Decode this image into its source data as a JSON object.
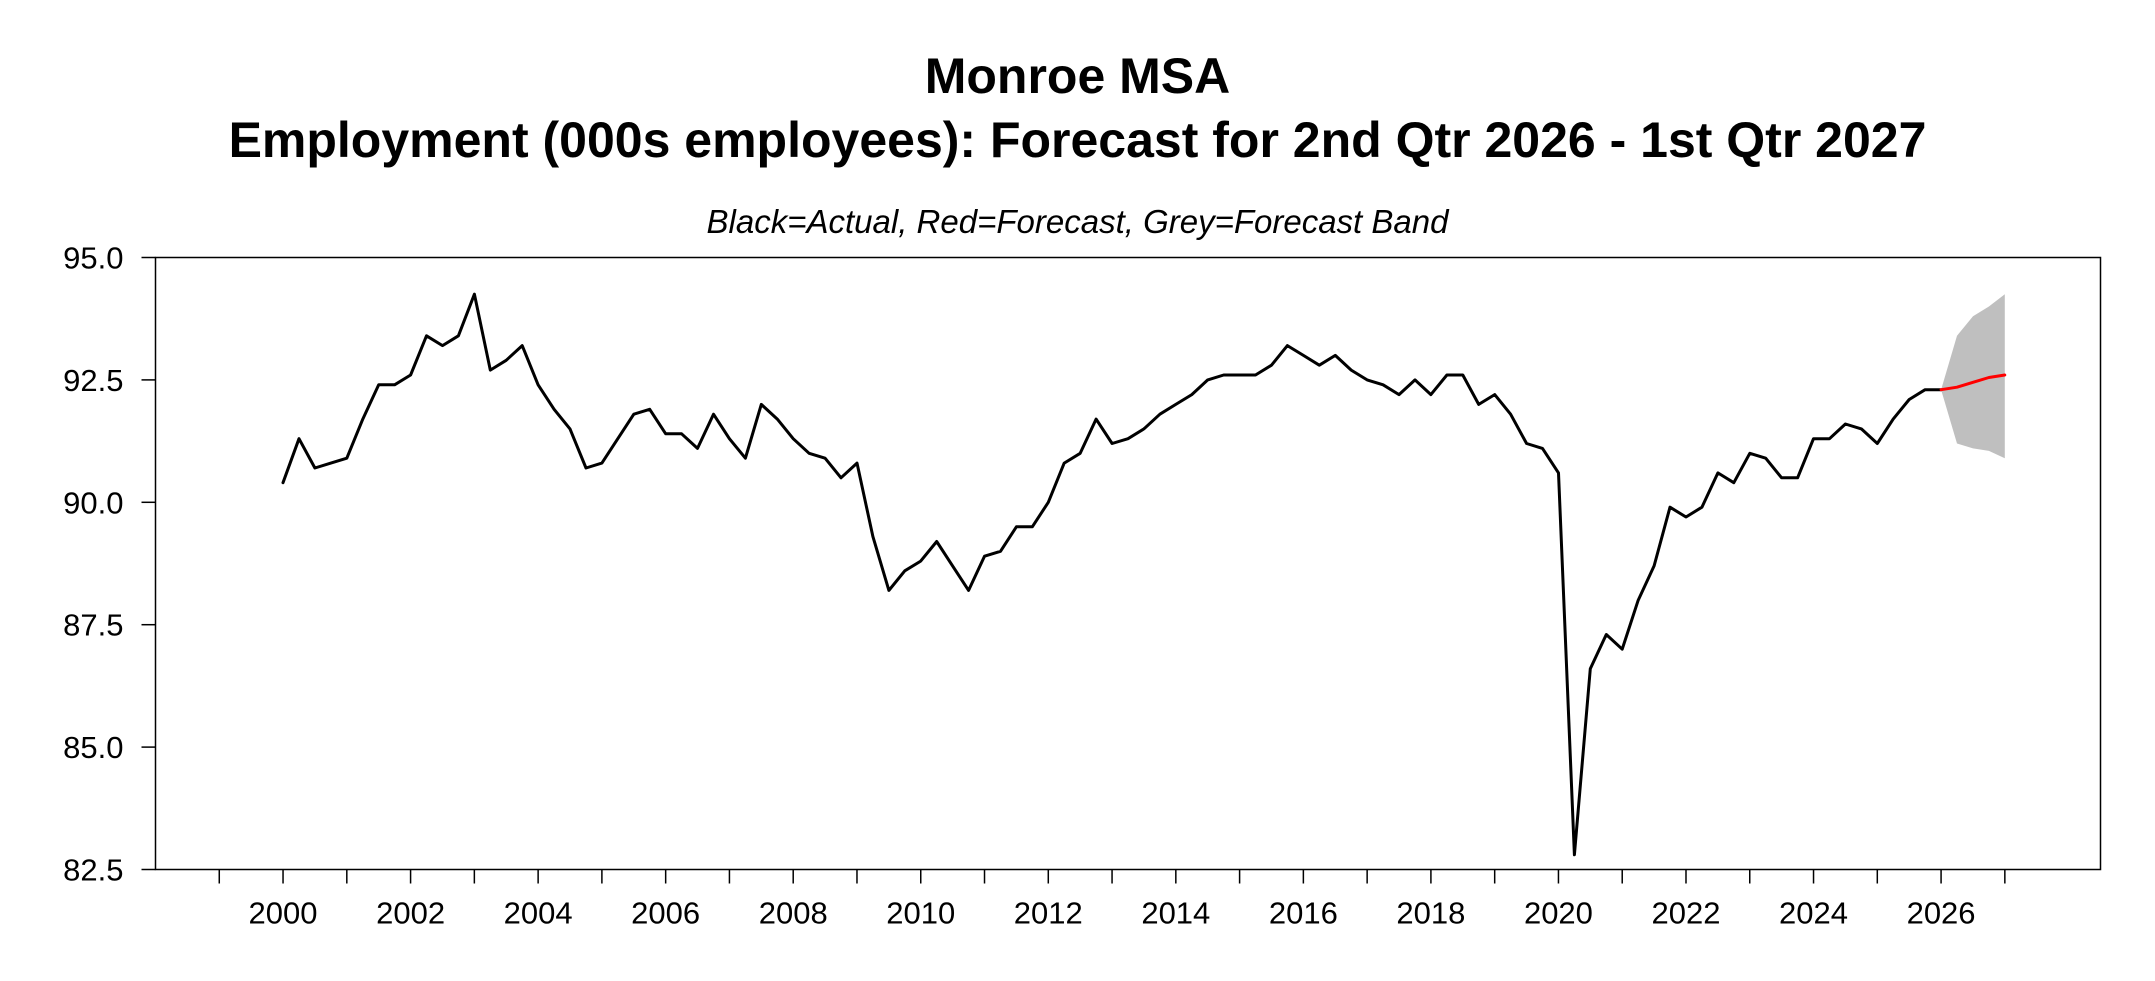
{
  "chart_data": {
    "type": "line",
    "title": "Monroe MSA",
    "subtitle": "Employment (000s employees): Forecast for 2nd Qtr 2026 - 1st Qtr 2027",
    "note": "Black=Actual, Red=Forecast, Grey=Forecast Band",
    "xlabel": "",
    "ylabel": "",
    "xlim": [
      1998.0,
      2028.5
    ],
    "ylim": [
      82.5,
      95.0
    ],
    "x_ticks": [
      "2000",
      "2002",
      "2004",
      "2006",
      "2008",
      "2010",
      "2012",
      "2014",
      "2016",
      "2018",
      "2020",
      "2022",
      "2024",
      "2026"
    ],
    "y_ticks": [
      "82.5",
      "85.0",
      "87.5",
      "90.0",
      "92.5",
      "95.0"
    ],
    "grid": false,
    "colors": {
      "actual": "#000000",
      "forecast": "#ff0000",
      "band": "#bfbfbf"
    },
    "series": [
      {
        "role": "actual",
        "x": [
          2000.0,
          2000.25,
          2000.5,
          2000.75,
          2001.0,
          2001.25,
          2001.5,
          2001.75,
          2002.0,
          2002.25,
          2002.5,
          2002.75,
          2003.0,
          2003.25,
          2003.5,
          2003.75,
          2004.0,
          2004.25,
          2004.5,
          2004.75,
          2005.0,
          2005.25,
          2005.5,
          2005.75,
          2006.0,
          2006.25,
          2006.5,
          2006.75,
          2007.0,
          2007.25,
          2007.5,
          2007.75,
          2008.0,
          2008.25,
          2008.5,
          2008.75,
          2009.0,
          2009.25,
          2009.5,
          2009.75,
          2010.0,
          2010.25,
          2010.5,
          2010.75,
          2011.0,
          2011.25,
          2011.5,
          2011.75,
          2012.0,
          2012.25,
          2012.5,
          2012.75,
          2013.0,
          2013.25,
          2013.5,
          2013.75,
          2014.0,
          2014.25,
          2014.5,
          2014.75,
          2015.0,
          2015.25,
          2015.5,
          2015.75,
          2016.0,
          2016.25,
          2016.5,
          2016.75,
          2017.0,
          2017.25,
          2017.5,
          2017.75,
          2018.0,
          2018.25,
          2018.5,
          2018.75,
          2019.0,
          2019.25,
          2019.5,
          2019.75,
          2020.0,
          2020.25,
          2020.5,
          2020.75,
          2021.0,
          2021.25,
          2021.5,
          2021.75,
          2022.0,
          2022.25,
          2022.5,
          2022.75,
          2023.0,
          2023.25,
          2023.5,
          2023.75,
          2024.0,
          2024.25,
          2024.5,
          2024.75,
          2025.0,
          2025.25,
          2025.5,
          2025.75,
          2026.0
        ],
        "y": [
          90.4,
          91.3,
          90.7,
          90.8,
          90.9,
          91.7,
          92.4,
          92.4,
          92.6,
          93.4,
          93.2,
          93.4,
          94.25,
          92.7,
          92.9,
          93.2,
          92.4,
          91.9,
          91.5,
          90.7,
          90.8,
          91.3,
          91.8,
          91.9,
          91.4,
          91.4,
          91.1,
          91.8,
          91.3,
          90.9,
          92.0,
          91.7,
          91.3,
          91.0,
          90.9,
          90.5,
          90.8,
          89.3,
          88.2,
          88.6,
          88.8,
          89.2,
          88.7,
          88.2,
          88.9,
          89.0,
          89.5,
          89.5,
          90.0,
          90.8,
          91.0,
          91.7,
          91.2,
          91.3,
          91.5,
          91.8,
          92.0,
          92.2,
          92.5,
          92.6,
          92.6,
          92.6,
          92.8,
          93.2,
          93.0,
          92.8,
          93.0,
          92.7,
          92.5,
          92.4,
          92.2,
          92.5,
          92.2,
          92.6,
          92.6,
          92.0,
          92.2,
          91.8,
          91.2,
          91.1,
          90.6,
          82.8,
          86.6,
          87.3,
          87.0,
          88.0,
          88.7,
          89.9,
          89.7,
          89.9,
          90.6,
          90.4,
          91.0,
          90.9,
          90.5,
          90.5,
          91.3,
          91.3,
          91.6,
          91.5,
          91.2,
          91.7,
          92.1,
          92.3,
          92.3
        ]
      },
      {
        "role": "forecast",
        "x": [
          2026.0,
          2026.25,
          2026.5,
          2026.75,
          2027.0
        ],
        "y": [
          92.3,
          92.35,
          92.45,
          92.55,
          92.6
        ]
      }
    ],
    "band": {
      "x": [
        2026.0,
        2026.25,
        2026.5,
        2026.75,
        2027.0
      ],
      "upper": [
        92.3,
        93.4,
        93.8,
        94.0,
        94.25
      ],
      "lower": [
        92.3,
        91.2,
        91.1,
        91.05,
        90.9
      ]
    }
  }
}
